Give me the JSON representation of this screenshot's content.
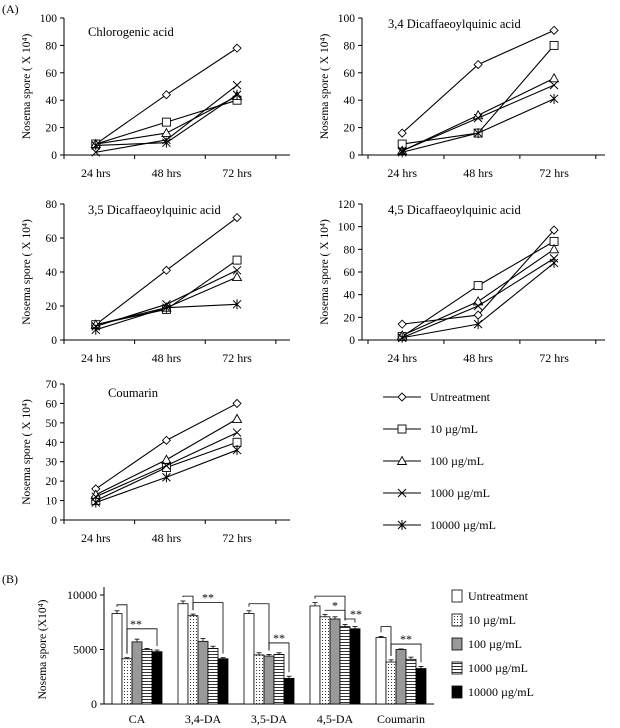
{
  "figure": {
    "panel_a_label": "(A)",
    "panel_b_label": "(B)"
  },
  "chart_data": [
    {
      "type": "line",
      "title": "Chlorogenic acid",
      "ylabel": "Nosema spore ( X 10⁴)",
      "categories": [
        "24 hrs",
        "48 hrs",
        "72 hrs"
      ],
      "ylim": [
        0,
        100
      ],
      "yticks": [
        0,
        20,
        40,
        60,
        80,
        100
      ],
      "series": [
        {
          "name": "Untreatment",
          "values": [
            8,
            44,
            78
          ]
        },
        {
          "name": "10 µg/mL",
          "values": [
            8,
            24,
            40
          ]
        },
        {
          "name": "100 µg/mL",
          "values": [
            8,
            16,
            43
          ]
        },
        {
          "name": "1000 µg/mL",
          "values": [
            2,
            11,
            51
          ]
        },
        {
          "name": "10000 µg/mL",
          "values": [
            7,
            9,
            44
          ]
        }
      ]
    },
    {
      "type": "line",
      "title": "3,4 Dicaffaeoylquinic acid",
      "ylabel": "Nosema spore ( X 10⁴)",
      "categories": [
        "24  hrs",
        "48 hrs",
        "72 hrs"
      ],
      "ylim": [
        0,
        100
      ],
      "yticks": [
        0,
        20,
        40,
        60,
        80,
        100
      ],
      "series": [
        {
          "name": "Untreatment",
          "values": [
            16,
            66,
            91
          ]
        },
        {
          "name": "10 µg/mL",
          "values": [
            8,
            16,
            80
          ]
        },
        {
          "name": "100 µg/mL",
          "values": [
            3,
            29,
            56
          ]
        },
        {
          "name": "1000 µg/mL",
          "values": [
            3,
            27,
            51
          ]
        },
        {
          "name": "10000 µg/mL",
          "values": [
            2,
            16,
            41
          ]
        }
      ]
    },
    {
      "type": "line",
      "title": "3,5 Dicaffaeoylquinic acid",
      "ylabel": "Nosema spore ( X 10⁴)",
      "categories": [
        "24  hrs",
        "48 hrs",
        "72 hrs"
      ],
      "ylim": [
        0,
        80
      ],
      "yticks": [
        0,
        20,
        40,
        60,
        80
      ],
      "series": [
        {
          "name": "Untreatment",
          "values": [
            9,
            41,
            72
          ]
        },
        {
          "name": "10 µg/mL",
          "values": [
            9,
            18,
            47
          ]
        },
        {
          "name": "100 µg/mL",
          "values": [
            9,
            19,
            37
          ]
        },
        {
          "name": "1000 µg/mL",
          "values": [
            8,
            21,
            41
          ]
        },
        {
          "name": "10000 µg/mL",
          "values": [
            6,
            19,
            21
          ]
        }
      ]
    },
    {
      "type": "line",
      "title": "4,5 Dicaffaeoylquinic acid",
      "ylabel": "Nosema spore ( X 10⁴)",
      "categories": [
        "24  hrs",
        "48 hrs",
        "72 hrs"
      ],
      "ylim": [
        0,
        120
      ],
      "yticks": [
        0,
        20,
        40,
        60,
        80,
        100,
        120
      ],
      "series": [
        {
          "name": "Untreatment",
          "values": [
            14,
            22,
            97
          ]
        },
        {
          "name": "10 µg/mL",
          "values": [
            3,
            48,
            87
          ]
        },
        {
          "name": "100 µg/mL",
          "values": [
            4,
            34,
            80
          ]
        },
        {
          "name": "1000 µg/mL",
          "values": [
            2,
            30,
            72
          ]
        },
        {
          "name": "10000 µg/mL",
          "values": [
            2,
            14,
            68
          ]
        }
      ]
    },
    {
      "type": "line",
      "title": "Coumarin",
      "ylabel": "Nosema spore ( X 10⁴)",
      "categories": [
        "24 hrs",
        "48 hrs",
        "72 hrs"
      ],
      "ylim": [
        0,
        70
      ],
      "yticks": [
        0,
        10,
        20,
        30,
        40,
        50,
        60,
        70
      ],
      "series": [
        {
          "name": "Untreatment",
          "values": [
            16,
            41,
            60
          ]
        },
        {
          "name": "10 µg/mL",
          "values": [
            10,
            27,
            40
          ]
        },
        {
          "name": "100 µg/mL",
          "values": [
            13,
            31,
            52
          ]
        },
        {
          "name": "1000 µg/mL",
          "values": [
            12,
            28,
            45
          ]
        },
        {
          "name": "10000 µg/mL",
          "values": [
            9,
            22,
            36
          ]
        }
      ]
    },
    {
      "type": "bar",
      "title": "",
      "ylabel": "Nosema spore (X10⁴)",
      "categories": [
        "CA",
        "3,4-DA",
        "3,5-DA",
        "4,5-DA",
        "Coumarin"
      ],
      "ylim": [
        0,
        10000
      ],
      "yticks": [
        0,
        5000,
        10000
      ],
      "series": [
        {
          "name": "Untreatment",
          "values": [
            8300,
            9200,
            8300,
            9000,
            6100
          ],
          "errors": [
            250,
            250,
            250,
            300,
            100
          ]
        },
        {
          "name": "10 µg/mL",
          "values": [
            4150,
            8100,
            4500,
            8000,
            3850
          ],
          "errors": [
            100,
            150,
            200,
            200,
            200
          ]
        },
        {
          "name": "100 µg/mL",
          "values": [
            5700,
            5750,
            4400,
            7800,
            5000
          ],
          "errors": [
            250,
            250,
            150,
            200,
            50
          ]
        },
        {
          "name": "1000 µg/mL",
          "values": [
            5000,
            5100,
            4550,
            7100,
            4100
          ],
          "errors": [
            100,
            200,
            150,
            200,
            200
          ]
        },
        {
          "name": "10000 µg/mL",
          "values": [
            4800,
            4150,
            2350,
            6900,
            3250
          ],
          "errors": [
            150,
            100,
            200,
            200,
            200
          ]
        }
      ],
      "annotations": [
        "**",
        "**",
        "**",
        "*",
        "**",
        "**"
      ]
    }
  ],
  "legend_a": [
    "Untreatment",
    "10 µg/mL",
    "100 µg/mL",
    "1000 µg/mL",
    "10000 µg/mL"
  ],
  "legend_b": [
    "Untreatment",
    "10 µg/mL",
    "100 µg/mL",
    "1000 µg/mL",
    "10000 µg/mL"
  ]
}
